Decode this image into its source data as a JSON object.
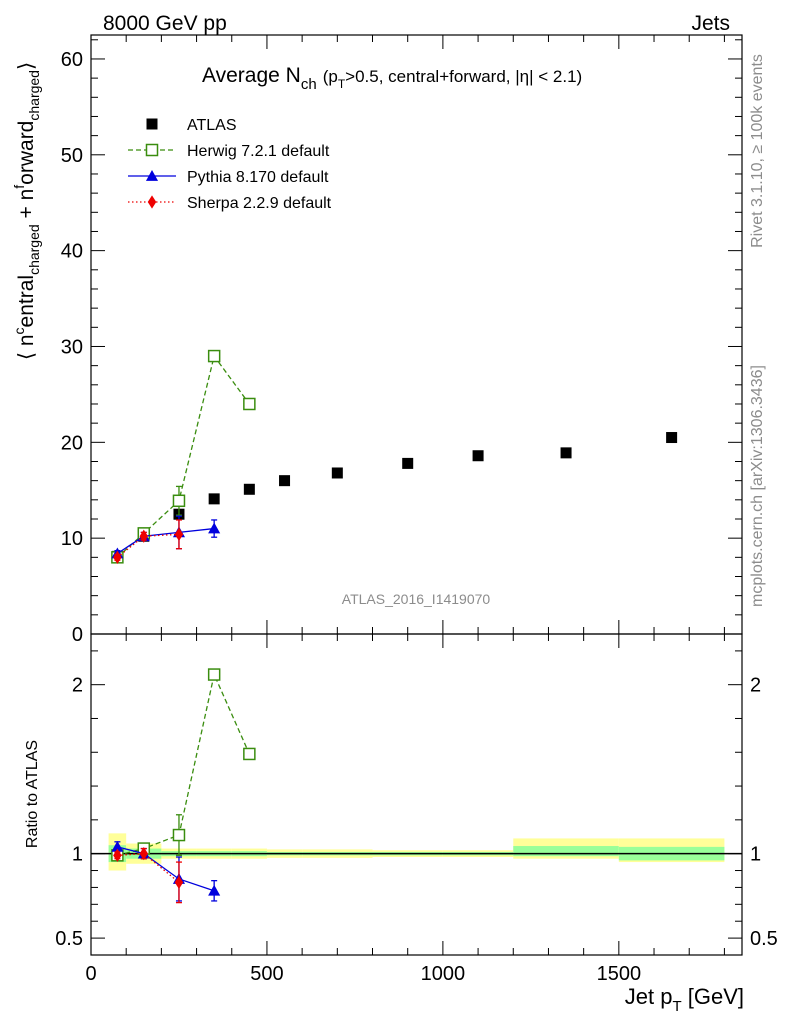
{
  "header": {
    "energy_label": "8000 GeV pp",
    "category_label": "Jets"
  },
  "side": {
    "rivet_label": "Rivet 3.1.10, ≥ 100k events",
    "mcplots_label": "mcplots.cern.ch [arXiv:1306.3436]"
  },
  "watermark": "ATLAS_2016_I1419070",
  "colors": {
    "atlas": "#000000",
    "herwig": "#3a8d0f",
    "pythia": "#0000dd",
    "sherpa": "#ee0000",
    "band_inner": "#99ff99",
    "band_outer": "#ffff99"
  },
  "chart_data": [
    {
      "type": "scatter",
      "title": {
        "main": "Average N",
        "main_sub": "ch",
        "cut_p": "(p",
        "cut_sub": "T",
        "cut_rest": ">0.5, central+forward, |η| < 2.1)"
      },
      "ylabel": "⟨ n^central_charged + n^forward_charged ⟩",
      "ylabel_parts": [
        "⟨ n",
        "c",
        "entral",
        "charged",
        " + n",
        "f",
        "orward",
        "charged",
        "⟩"
      ],
      "xlim": [
        0,
        1850
      ],
      "ylim": [
        0,
        62.5
      ],
      "yticks": [
        10,
        20,
        30,
        40,
        50,
        60
      ],
      "legend_position": "top-left",
      "series": [
        {
          "name": "ATLAS",
          "marker": "filled-square",
          "x": [
            75,
            150,
            250,
            350,
            450,
            550,
            700,
            900,
            1100,
            1350,
            1650
          ],
          "y": [
            8.1,
            10.2,
            12.5,
            14.1,
            15.1,
            16.0,
            16.8,
            17.8,
            18.6,
            18.9,
            20.5
          ]
        },
        {
          "name": "Herwig 7.2.1 default",
          "marker": "open-square",
          "line": "dashed",
          "x": [
            75,
            150,
            250,
            350,
            450
          ],
          "y": [
            8.0,
            10.5,
            13.9,
            29.0,
            24.0
          ],
          "yerr": [
            0.3,
            0.4,
            1.5,
            0.3,
            0.3
          ]
        },
        {
          "name": "Pythia 8.170 default",
          "marker": "filled-triangle",
          "line": "solid",
          "x": [
            75,
            150,
            250,
            350
          ],
          "y": [
            8.4,
            10.2,
            10.6,
            11.0
          ],
          "yerr": [
            0.3,
            0.4,
            1.7,
            0.9
          ]
        },
        {
          "name": "Sherpa 2.2.9 default",
          "marker": "filled-diamond",
          "line": "dotted",
          "x": [
            75,
            150,
            250
          ],
          "y": [
            8.0,
            10.2,
            10.4
          ],
          "yerr": [
            0.3,
            0.4,
            1.5
          ]
        }
      ]
    },
    {
      "type": "scatter",
      "ylabel": "Ratio to ATLAS",
      "xlabel": "Jet p",
      "xlabel_sub": "T",
      "xlabel_unit": " [GeV]",
      "xlim": [
        0,
        1850
      ],
      "ylim": [
        0.4,
        2.3
      ],
      "yticks": [
        0.5,
        1,
        2
      ],
      "ytick_labels": [
        "0.5",
        "1",
        "2"
      ],
      "xticks": [
        0,
        500,
        1000,
        1500
      ],
      "reference": 1,
      "bands": [
        {
          "x0": 50,
          "x1": 100,
          "inner": [
            0.95,
            1.05
          ],
          "outer": [
            0.9,
            1.12
          ]
        },
        {
          "x0": 100,
          "x1": 200,
          "inner": [
            0.97,
            1.03
          ],
          "outer": [
            0.94,
            1.06
          ]
        },
        {
          "x0": 200,
          "x1": 300,
          "inner": [
            0.985,
            1.015
          ],
          "outer": [
            0.97,
            1.03
          ]
        },
        {
          "x0": 300,
          "x1": 400,
          "inner": [
            0.985,
            1.015
          ],
          "outer": [
            0.97,
            1.03
          ]
        },
        {
          "x0": 400,
          "x1": 500,
          "inner": [
            0.985,
            1.015
          ],
          "outer": [
            0.97,
            1.03
          ]
        },
        {
          "x0": 500,
          "x1": 600,
          "inner": [
            0.99,
            1.01
          ],
          "outer": [
            0.975,
            1.025
          ]
        },
        {
          "x0": 600,
          "x1": 800,
          "inner": [
            0.99,
            1.01
          ],
          "outer": [
            0.975,
            1.025
          ]
        },
        {
          "x0": 800,
          "x1": 1000,
          "inner": [
            0.99,
            1.01
          ],
          "outer": [
            0.98,
            1.02
          ]
        },
        {
          "x0": 1000,
          "x1": 1200,
          "inner": [
            0.99,
            1.01
          ],
          "outer": [
            0.98,
            1.02
          ]
        },
        {
          "x0": 1200,
          "x1": 1500,
          "inner": [
            0.985,
            1.045
          ],
          "outer": [
            0.97,
            1.09
          ]
        },
        {
          "x0": 1500,
          "x1": 1800,
          "inner": [
            0.96,
            1.04
          ],
          "outer": [
            0.95,
            1.09
          ]
        }
      ],
      "series": [
        {
          "name": "Herwig 7.2.1 default",
          "marker": "open-square",
          "line": "dashed",
          "x": [
            75,
            150,
            250,
            350,
            450
          ],
          "y": [
            0.99,
            1.03,
            1.11,
            2.06,
            1.59
          ],
          "yerr": [
            0.02,
            0.03,
            0.12,
            0.02,
            0.02
          ]
        },
        {
          "name": "Pythia 8.170 default",
          "marker": "filled-triangle",
          "line": "solid",
          "x": [
            75,
            150,
            250,
            350
          ],
          "y": [
            1.04,
            1.0,
            0.85,
            0.78
          ],
          "yerr": [
            0.03,
            0.03,
            0.13,
            0.06
          ]
        },
        {
          "name": "Sherpa 2.2.9 default",
          "marker": "filled-diamond",
          "line": "dotted",
          "x": [
            75,
            150,
            250
          ],
          "y": [
            0.99,
            1.0,
            0.83
          ],
          "yerr": [
            0.02,
            0.03,
            0.12
          ]
        }
      ]
    }
  ]
}
